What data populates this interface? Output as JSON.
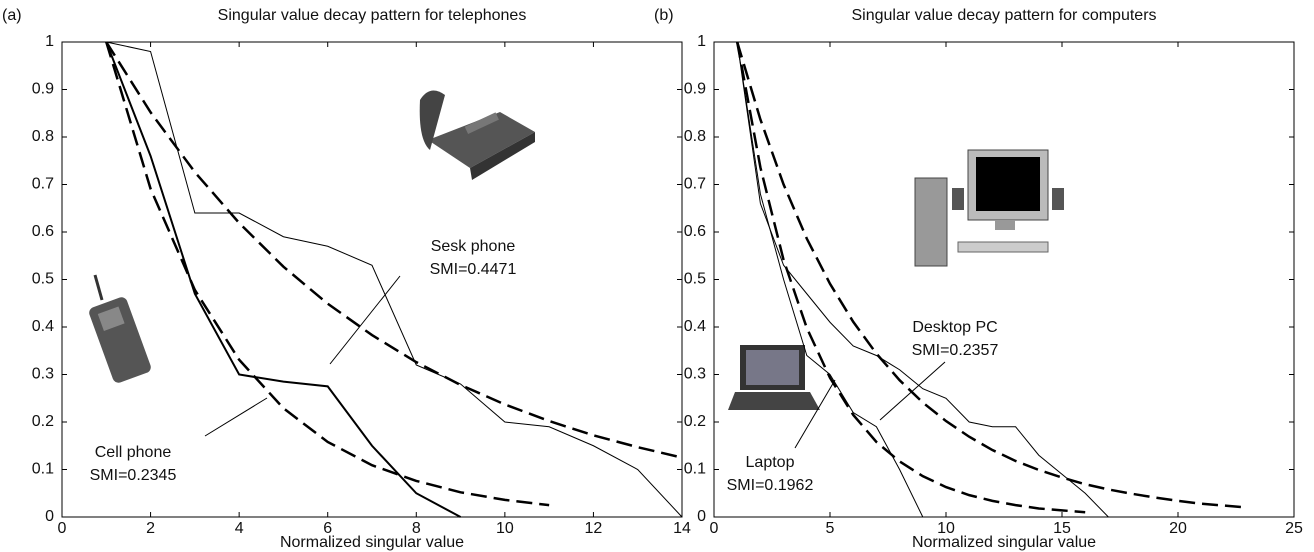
{
  "chart_data": [
    {
      "type": "line",
      "panel_label": "(a)",
      "title": "Singular value decay pattern for telephones",
      "x_label": "Normalized singular value",
      "xlim": [
        0,
        14
      ],
      "xticks": [
        0,
        2,
        4,
        6,
        8,
        10,
        12,
        14
      ],
      "ylim": [
        0,
        1
      ],
      "yticks": [
        0,
        0.1,
        0.2,
        0.3,
        0.4,
        0.5,
        0.6,
        0.7,
        0.8,
        0.9,
        1
      ],
      "grid": false,
      "series": [
        {
          "color": "#000000",
          "line_style": "solid",
          "line_width": 1,
          "x": [
            1,
            2,
            3,
            4,
            5,
            6,
            7,
            8,
            9,
            10,
            11,
            12,
            13,
            14
          ],
          "values": [
            1,
            0.98,
            0.64,
            0.64,
            0.59,
            0.57,
            0.53,
            0.32,
            0.28,
            0.2,
            0.19,
            0.15,
            0.1,
            0
          ]
        },
        {
          "color": "#000000",
          "line_style": "dashed",
          "line_width": 2.5,
          "x": [
            1,
            2,
            3,
            4,
            5,
            6,
            7,
            8,
            9,
            10,
            11,
            12,
            13,
            14
          ],
          "values": [
            1,
            0.852,
            0.726,
            0.619,
            0.527,
            0.449,
            0.383,
            0.326,
            0.278,
            0.237,
            0.202,
            0.172,
            0.147,
            0.125
          ]
        },
        {
          "color": "#000000",
          "line_style": "solid",
          "line_width": 2,
          "x": [
            1,
            2,
            3,
            4,
            5,
            6,
            7,
            8,
            9
          ],
          "values": [
            1,
            0.76,
            0.47,
            0.3,
            0.285,
            0.275,
            0.15,
            0.05,
            0
          ]
        },
        {
          "color": "#000000",
          "line_style": "dashed",
          "line_width": 2.5,
          "x": [
            1,
            2,
            3,
            4,
            5,
            6,
            7,
            8,
            9,
            10,
            11
          ],
          "values": [
            1,
            0.691,
            0.478,
            0.331,
            0.229,
            0.158,
            0.109,
            0.076,
            0.052,
            0.036,
            0.025
          ]
        }
      ],
      "annotations": [
        [
          "Sesk phone",
          "SMI=0.4471"
        ],
        [
          "Cell phone",
          "SMI=0.2345"
        ]
      ]
    },
    {
      "type": "line",
      "panel_label": "(b)",
      "title": "Singular value decay pattern for computers",
      "x_label": "Normalized singular value",
      "xlim": [
        0,
        25
      ],
      "xticks": [
        0,
        5,
        10,
        15,
        20,
        25
      ],
      "ylim": [
        0,
        1
      ],
      "yticks": [
        0,
        0.1,
        0.2,
        0.3,
        0.4,
        0.5,
        0.6,
        0.7,
        0.8,
        0.9,
        1
      ],
      "grid": false,
      "series": [
        {
          "color": "#000000",
          "line_style": "solid",
          "line_width": 1,
          "x": [
            1,
            2,
            3,
            4,
            5,
            6,
            7,
            8,
            9,
            10,
            11,
            12,
            13,
            14,
            15,
            16,
            17
          ],
          "values": [
            1,
            0.66,
            0.53,
            0.47,
            0.41,
            0.36,
            0.34,
            0.31,
            0.27,
            0.25,
            0.2,
            0.19,
            0.19,
            0.13,
            0.09,
            0.05,
            0
          ]
        },
        {
          "color": "#000000",
          "line_style": "dashed",
          "line_width": 2.5,
          "x": [
            1,
            2,
            3,
            4,
            5,
            6,
            7,
            8,
            9,
            10,
            11,
            12,
            13,
            14,
            15,
            16,
            17,
            18,
            19,
            20,
            21,
            22,
            23
          ],
          "values": [
            1,
            0.837,
            0.7,
            0.586,
            0.491,
            0.411,
            0.344,
            0.288,
            0.241,
            0.202,
            0.169,
            0.141,
            0.118,
            0.099,
            0.083,
            0.069,
            0.058,
            0.049,
            0.041,
            0.034,
            0.028,
            0.024,
            0.02
          ]
        },
        {
          "color": "#000000",
          "line_style": "solid",
          "line_width": 1,
          "x": [
            1,
            2,
            3,
            4,
            5,
            6,
            7,
            8,
            9
          ],
          "values": [
            1,
            0.68,
            0.5,
            0.34,
            0.3,
            0.22,
            0.19,
            0.1,
            0
          ]
        },
        {
          "color": "#000000",
          "line_style": "dashed",
          "line_width": 2.5,
          "x": [
            1,
            2,
            3,
            4,
            5,
            6,
            7,
            8,
            9,
            10,
            11,
            12,
            13,
            14,
            15,
            16
          ],
          "values": [
            1,
            0.736,
            0.541,
            0.398,
            0.293,
            0.215,
            0.158,
            0.117,
            0.086,
            0.063,
            0.046,
            0.034,
            0.025,
            0.018,
            0.014,
            0.01
          ]
        }
      ],
      "annotations": [
        [
          "Desktop PC",
          "SMI=0.2357"
        ],
        [
          "Laptop",
          "SMI=0.1962"
        ]
      ]
    }
  ]
}
